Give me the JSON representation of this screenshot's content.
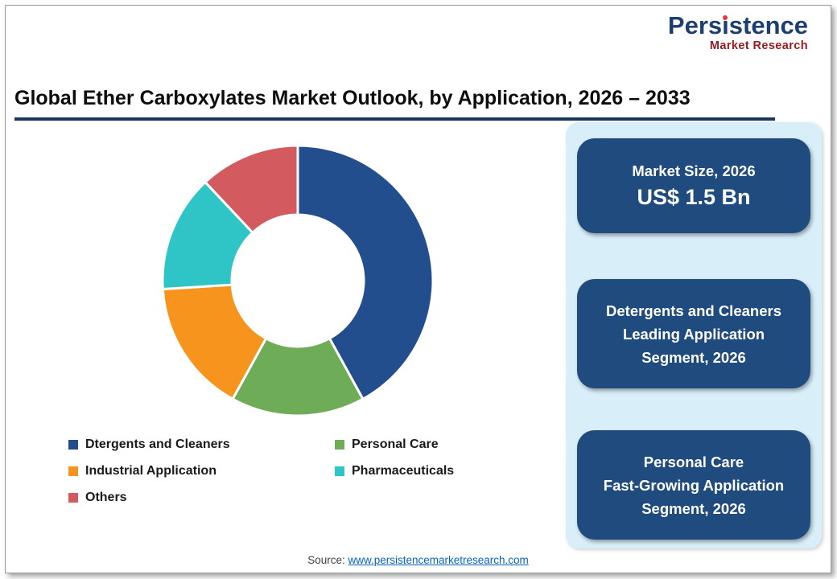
{
  "logo": {
    "name_pre": "Pers",
    "name_i": "ı",
    "name_post": "stence",
    "tagline": "Market Research"
  },
  "header": {
    "title": "Global Ether Carboxylates Market Outlook, by Application, 2026 – 2033"
  },
  "chart_data": {
    "type": "pie",
    "donut": true,
    "hole_ratio": 0.49,
    "title": "Global Ether Carboxylates Market Outlook, by Application, 2026 – 2033",
    "categories": [
      "Dtergents and Cleaners",
      "Personal Care",
      "Industrial Application",
      "Pharmaceuticals",
      "Others"
    ],
    "values": [
      42,
      16,
      16,
      14,
      12
    ],
    "values_note": "percent share, estimated from arc angles (no data labels shown in figure)",
    "colors": [
      "#234e8d",
      "#6fac58",
      "#f7941d",
      "#2fc5c6",
      "#d35a5e"
    ],
    "start_angle_deg": 0,
    "direction": "clockwise",
    "legend_position": "bottom-left, two columns"
  },
  "panel": {
    "market_size": {
      "label": "Market Size, 2026",
      "value": "US$ 1.5 Bn"
    },
    "leading_segment": {
      "text": "Detergents and Cleaners\nLeading Application\nSegment, 2026"
    },
    "fast_growing_segment": {
      "text": "Personal Care\nFast-Growing Application\nSegment, 2026"
    }
  },
  "source": {
    "label": "Source: ",
    "link": "www.persistencemarketresearch.com"
  },
  "colors": {
    "box_navy": "#1f4b7e",
    "panel_light_blue": "#d8eef9",
    "title_rule_navy": "#17375e",
    "logo_blue": "#1c3e71",
    "logo_red": "#971b1e",
    "link_blue": "#0563c1"
  }
}
